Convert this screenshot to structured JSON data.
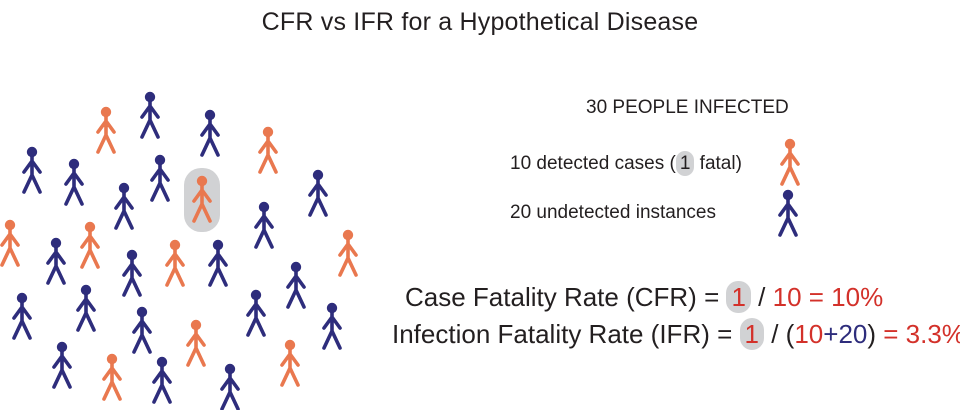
{
  "title": "CFR vs IFR for a Hypothetical Disease",
  "colors": {
    "detected": "#e9784f",
    "undetected": "#2e2d7c",
    "highlight": "#d1d2d4",
    "result_red": "#d3312a"
  },
  "legend": {
    "header": "30 PEOPLE INFECTED",
    "detected_before": "10 detected cases (",
    "detected_fatal": "1",
    "detected_after": " fatal)",
    "undetected": "20 undetected instances"
  },
  "cfr": {
    "label": "Case Fatality Rate (CFR) = ",
    "fatal": "1",
    "slash": " / ",
    "denominator": "10",
    "result": " = 10%"
  },
  "ifr": {
    "label": "Infection Fatality Rate (IFR) = ",
    "fatal": "1",
    "slash": " / (",
    "detected": "10",
    "plus": "+",
    "undetected": "20",
    "close": ")",
    "result": " = 3.3%"
  }
}
